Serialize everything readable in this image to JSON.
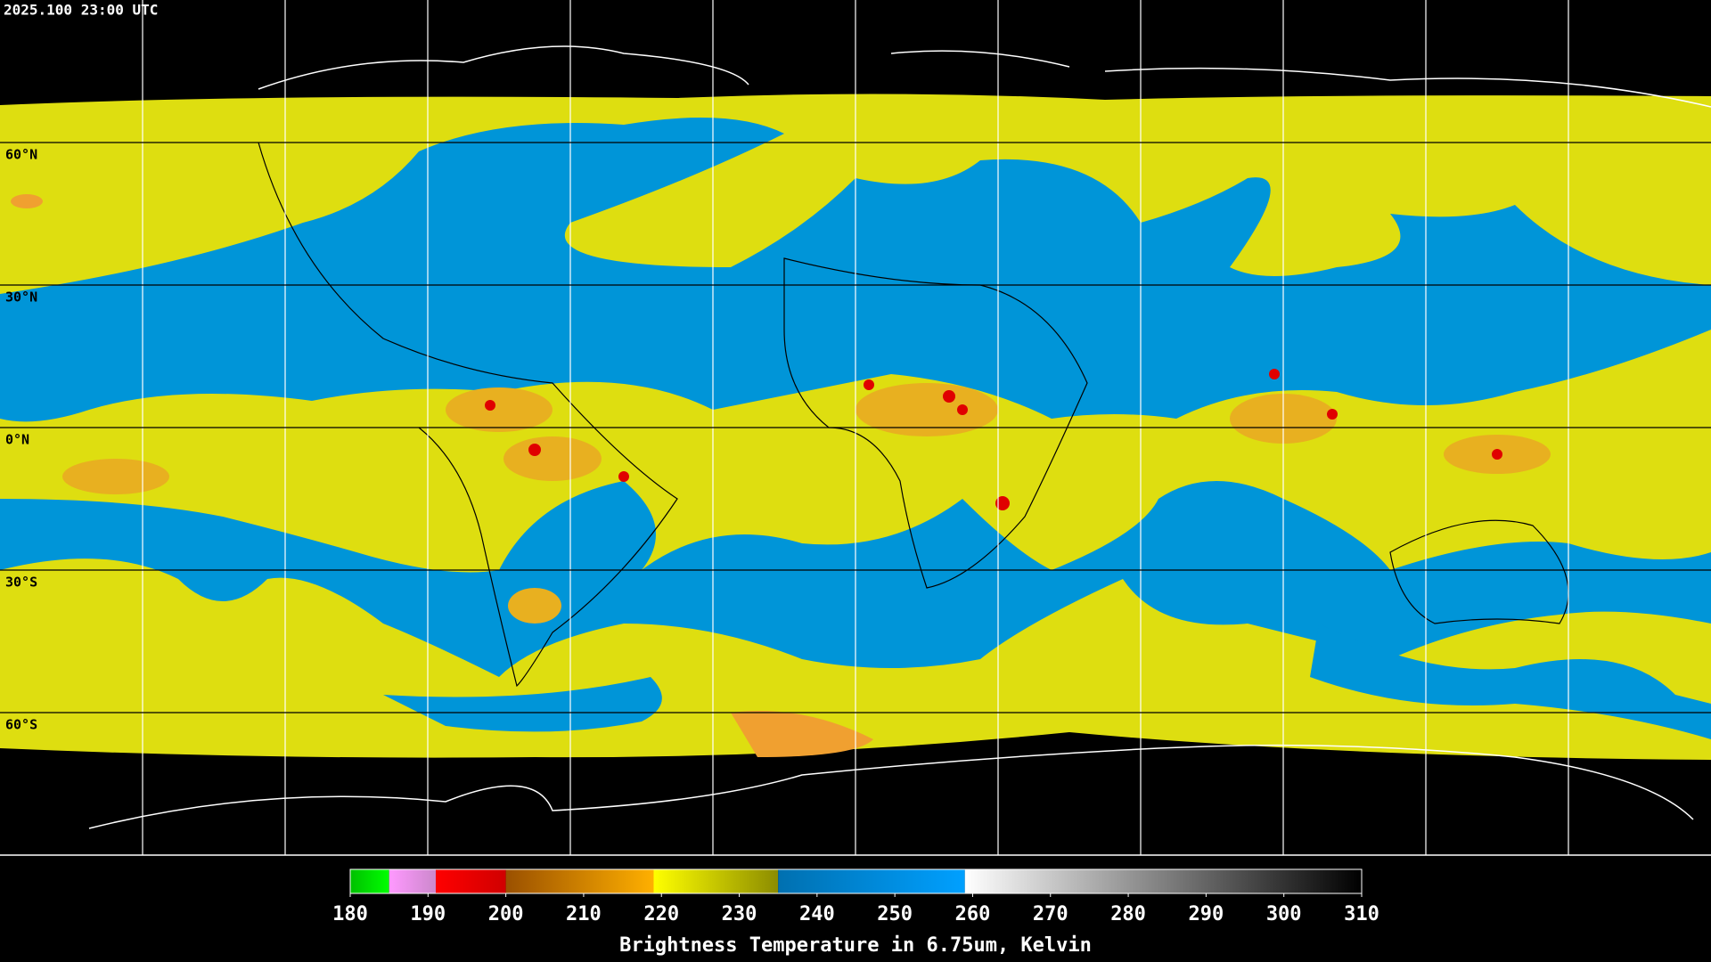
{
  "header": {
    "timestamp": "2025.100 23:00 UTC"
  },
  "map": {
    "lat_labels": [
      "60°N",
      "30°N",
      "0°N",
      "30°S",
      "60°S"
    ]
  },
  "colorbar": {
    "title": "Brightness Temperature in 6.75um, Kelvin",
    "range": [
      180,
      310
    ],
    "ticks": [
      180,
      190,
      200,
      210,
      220,
      230,
      240,
      250,
      260,
      270,
      280,
      290,
      300,
      310
    ],
    "segments": [
      {
        "from": 180,
        "to": 185,
        "colors": [
          "#00c000",
          "#00ff00"
        ]
      },
      {
        "from": 185,
        "to": 191,
        "colors": [
          "#ff99ff",
          "#cc88cc"
        ]
      },
      {
        "from": 191,
        "to": 200,
        "colors": [
          "#ff0000",
          "#d00000"
        ]
      },
      {
        "from": 200,
        "to": 219,
        "colors": [
          "#9a5000",
          "#ffb000"
        ]
      },
      {
        "from": 219,
        "to": 235,
        "colors": [
          "#ffff00",
          "#8c8c00"
        ]
      },
      {
        "from": 235,
        "to": 259,
        "colors": [
          "#0070b0",
          "#00a0ff"
        ]
      },
      {
        "from": 259,
        "to": 310,
        "colors": [
          "#ffffff",
          "#000000"
        ]
      }
    ]
  }
}
